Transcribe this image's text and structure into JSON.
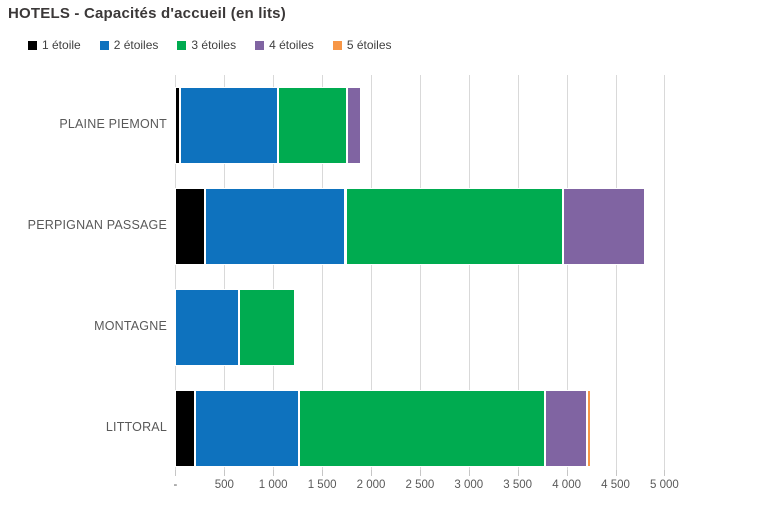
{
  "title": "HOTELS - Capacités d'accueil (en lits)",
  "chart_data": {
    "type": "bar",
    "orientation": "horizontal",
    "stacked": true,
    "title": "HOTELS - Capacités d'accueil (en lits)",
    "categories": [
      "PLAINE PIEMONT",
      "PERPIGNAN PASSAGE",
      "MONTAGNE",
      "LITTORAL"
    ],
    "series": [
      {
        "name": "1 étoile",
        "color": "#000000",
        "values": [
          50,
          300,
          0,
          200
        ]
      },
      {
        "name": "2 étoiles",
        "color": "#0e72be",
        "values": [
          1000,
          1440,
          650,
          1060
        ]
      },
      {
        "name": "3 étoiles",
        "color": "#00ab50",
        "values": [
          700,
          2220,
          570,
          2520
        ]
      },
      {
        "name": "4 étoiles",
        "color": "#8064a2",
        "values": [
          150,
          840,
          0,
          430
        ]
      },
      {
        "name": "5 étoiles",
        "color": "#f79646",
        "values": [
          0,
          0,
          0,
          45
        ]
      }
    ],
    "xlim": [
      0,
      5000
    ],
    "x_tick_step": 500,
    "x_tick_labels": [
      "-",
      "500",
      "1 000",
      "1 500",
      "2 000",
      "2 500",
      "3 000",
      "3 500",
      "4 000",
      "4 500",
      "5 000"
    ],
    "grid": true,
    "legend_position": "top",
    "colors": {
      "title_text": "#3b3838",
      "label_text": "#595959",
      "legend_text": "#404040",
      "gridline": "#d9d9d9"
    }
  }
}
